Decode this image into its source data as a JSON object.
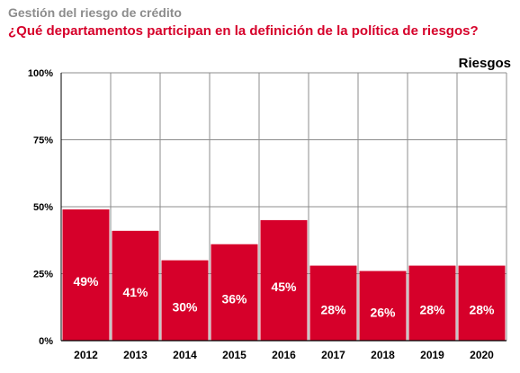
{
  "header": {
    "kicker": "Gestión del riesgo de crédito",
    "question": "¿Qué departamentos participan en la definición de la política de riesgos?"
  },
  "colors": {
    "bar": "#d6002a",
    "kicker": "#8c8c8c",
    "question": "#d6002a",
    "grid": "#8c8c8c",
    "label_on_bar": "#ffffff"
  },
  "chart_data": {
    "type": "bar",
    "categories": [
      "2012",
      "2013",
      "2014",
      "2015",
      "2016",
      "2017",
      "2018",
      "2019",
      "2020"
    ],
    "series": [
      {
        "name": "Riesgos",
        "values": [
          49,
          41,
          30,
          36,
          45,
          28,
          26,
          28,
          28
        ]
      }
    ],
    "data_labels": [
      "49%",
      "41%",
      "30%",
      "36%",
      "45%",
      "28%",
      "26%",
      "28%",
      "28%"
    ],
    "y_ticks": [
      0,
      25,
      50,
      75,
      100
    ],
    "y_tick_labels": [
      "0%",
      "25%",
      "50%",
      "75%",
      "100%"
    ],
    "ylim": [
      0,
      100
    ],
    "grid": true,
    "xlabel": "",
    "ylabel": ""
  }
}
